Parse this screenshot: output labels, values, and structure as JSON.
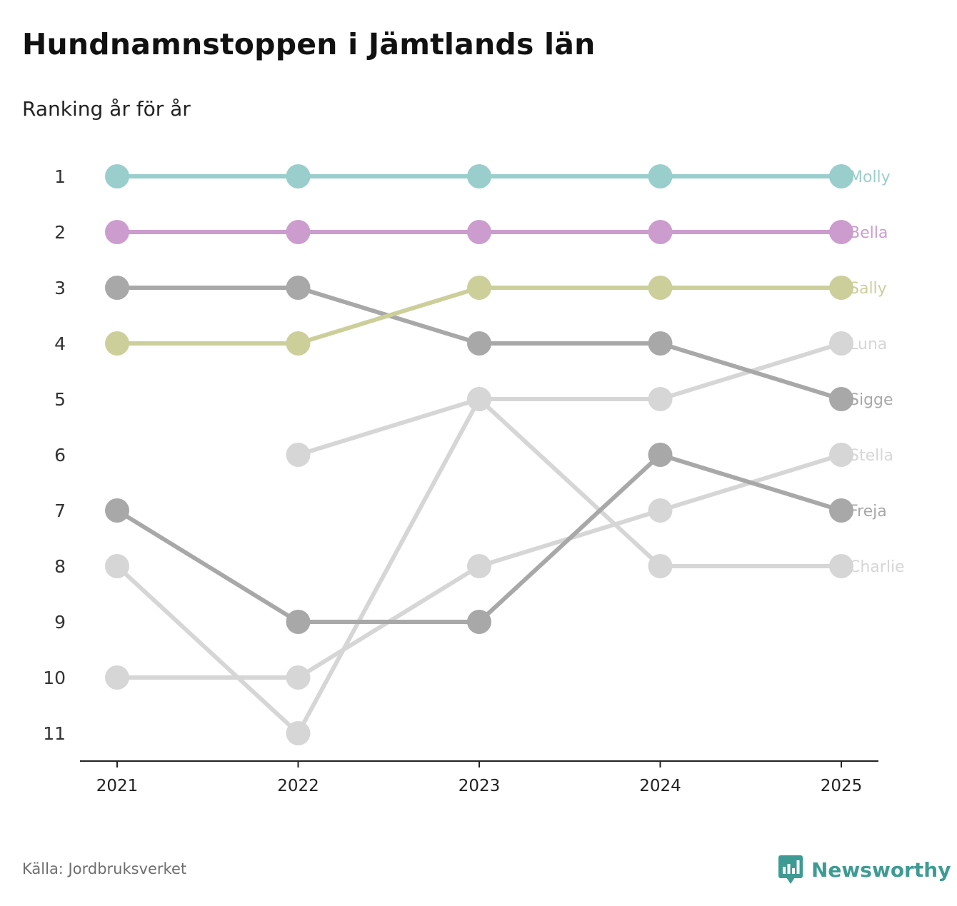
{
  "title": "Hundnamnstoppen i Jämtlands län",
  "subtitle": "Ranking år för år",
  "footer": {
    "source": "Källa: Jordbruksverket",
    "brand": "Newsworthy",
    "brand_icon": "bar-chart-speech-bubble-icon",
    "brand_color": "#3e9b93"
  },
  "chart_data": {
    "type": "line",
    "title": "Hundnamnstoppen i Jämtlands län",
    "subtitle": "Ranking år för år",
    "xlabel": "",
    "ylabel": "",
    "x": [
      "2021",
      "2022",
      "2023",
      "2024",
      "2025"
    ],
    "y_ticks": [
      "1",
      "2",
      "3",
      "4",
      "5",
      "6",
      "7",
      "8",
      "9",
      "10",
      "11"
    ],
    "ylim": [
      1,
      11
    ],
    "y_inverted": true,
    "grid": false,
    "legend": "direct labels at right end of lines",
    "series": [
      {
        "name": "Charlie",
        "values": [
          8,
          11,
          5,
          8,
          8
        ],
        "color": "#d6d6d6"
      },
      {
        "name": "Stella",
        "values": [
          10,
          10,
          8,
          7,
          6
        ],
        "color": "#d6d6d6"
      },
      {
        "name": "Luna",
        "values": [
          null,
          6,
          5,
          5,
          4
        ],
        "color": "#d6d6d6"
      },
      {
        "name": "Freja",
        "values": [
          7,
          9,
          9,
          6,
          7
        ],
        "color": "#a8a8a8"
      },
      {
        "name": "Sigge",
        "values": [
          3,
          3,
          4,
          4,
          5
        ],
        "color": "#a8a8a8"
      },
      {
        "name": "Sally",
        "values": [
          4,
          4,
          3,
          3,
          3
        ],
        "color": "#cccf9a"
      },
      {
        "name": "Bella",
        "values": [
          2,
          2,
          2,
          2,
          2
        ],
        "color": "#cb9ccd"
      },
      {
        "name": "Molly",
        "values": [
          1,
          1,
          1,
          1,
          1
        ],
        "color": "#99cecc"
      }
    ]
  }
}
